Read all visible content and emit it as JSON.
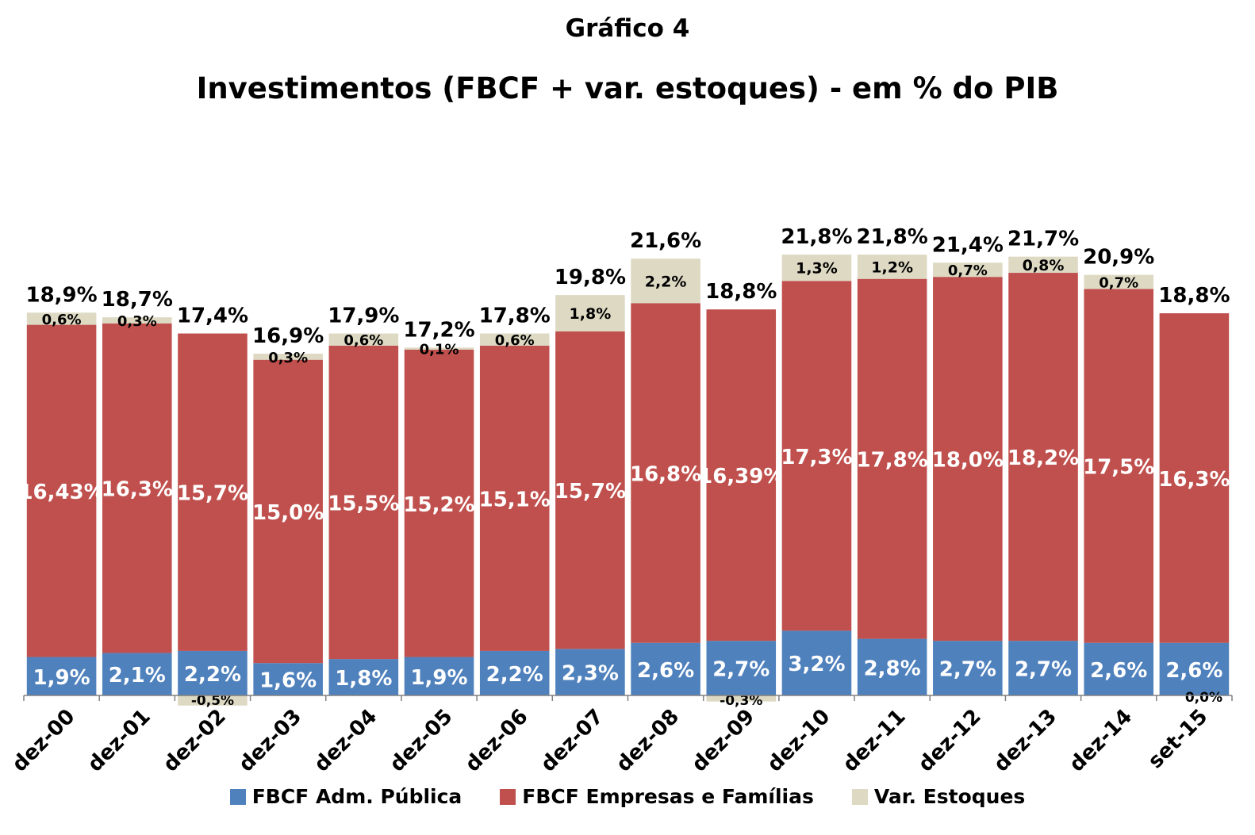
{
  "chart_data": {
    "type": "bar",
    "stacked": true,
    "title": "Gráfico 4",
    "subtitle": "Investimentos (FBCF + var. estoques) - em % do PIB",
    "categories": [
      "dez-00",
      "dez-01",
      "dez-02",
      "dez-03",
      "dez-04",
      "dez-05",
      "dez-06",
      "dez-07",
      "dez-08",
      "dez-09",
      "dez-10",
      "dez-11",
      "dez-12",
      "dez-13",
      "dez-14",
      "set-15"
    ],
    "series": [
      {
        "name": "FBCF Adm. Pública",
        "color": "#4F81BD",
        "values": [
          1.9,
          2.1,
          2.2,
          1.6,
          1.8,
          1.9,
          2.2,
          2.3,
          2.6,
          2.7,
          3.2,
          2.8,
          2.7,
          2.7,
          2.6,
          2.6
        ],
        "labels": [
          "1,9%",
          "2,1%",
          "2,2%",
          "1,6%",
          "1,8%",
          "1,9%",
          "2,2%",
          "2,3%",
          "2,6%",
          "2,7%",
          "3,2%",
          "2,8%",
          "2,7%",
          "2,7%",
          "2,6%",
          "2,6%"
        ]
      },
      {
        "name": "FBCF Empresas e Famílias",
        "color": "#C0504D",
        "values": [
          16.43,
          16.3,
          15.7,
          15.0,
          15.5,
          15.2,
          15.1,
          15.7,
          16.8,
          16.39,
          17.3,
          17.8,
          18.0,
          18.2,
          17.5,
          16.3
        ],
        "labels": [
          "16,43%",
          "16,3%",
          "15,7%",
          "15,0%",
          "15,5%",
          "15,2%",
          "15,1%",
          "15,7%",
          "16,8%",
          "16,39%",
          "17,3%",
          "17,8%",
          "18,0%",
          "18,2%",
          "17,5%",
          "16,3%"
        ]
      },
      {
        "name": "Var. Estoques",
        "color": "#DDD9C3",
        "values": [
          0.6,
          0.3,
          -0.5,
          0.3,
          0.6,
          0.1,
          0.6,
          1.8,
          2.2,
          -0.3,
          1.3,
          1.2,
          0.7,
          0.8,
          0.7,
          0.0
        ],
        "labels": [
          "0,6%",
          "0,3%",
          "-0,5%",
          "0,3%",
          "0,6%",
          "0,1%",
          "0,6%",
          "1,8%",
          "2,2%",
          "-0,3%",
          "1,3%",
          "1,2%",
          "0,7%",
          "0,8%",
          "0,7%",
          "0,0%"
        ]
      }
    ],
    "totals": [
      18.9,
      18.7,
      17.4,
      16.9,
      17.9,
      17.2,
      17.8,
      19.8,
      21.6,
      18.8,
      21.8,
      21.8,
      21.4,
      21.7,
      20.9,
      18.8
    ],
    "total_labels": [
      "18,9%",
      "18,7%",
      "17,4%",
      "16,9%",
      "17,9%",
      "17,2%",
      "17,8%",
      "19,8%",
      "21,6%",
      "18,8%",
      "21,8%",
      "21,8%",
      "21,4%",
      "21,7%",
      "20,9%",
      "18,8%"
    ],
    "legend_position": "bottom",
    "grid": false
  }
}
